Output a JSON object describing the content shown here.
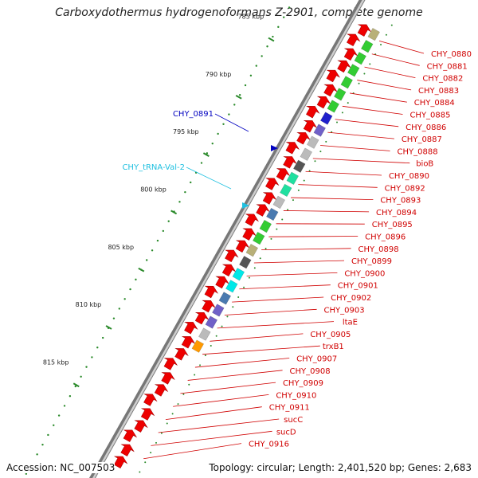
{
  "title": "Carboxydothermus hydrogenoformans Z-2901, complete genome",
  "accession": "Accession: NC_007503",
  "topology": "Topology: circular; Length: 2,401,520 bp; Genes: 2,683",
  "scale_labels": [
    "785 kbp",
    "790 kbp",
    "795 kbp",
    "800 kbp",
    "805 kbp",
    "810 kbp",
    "815 kbp"
  ],
  "genes": [
    {
      "name": "CHY_0880",
      "color": "#d00000"
    },
    {
      "name": "CHY_0881",
      "color": "#d00000"
    },
    {
      "name": "CHY_0882",
      "color": "#d00000"
    },
    {
      "name": "CHY_0883",
      "color": "#d00000"
    },
    {
      "name": "CHY_0884",
      "color": "#d00000"
    },
    {
      "name": "CHY_0885",
      "color": "#d00000"
    },
    {
      "name": "CHY_0886",
      "color": "#d00000"
    },
    {
      "name": "CHY_0887",
      "color": "#d00000"
    },
    {
      "name": "CHY_0888",
      "color": "#d00000"
    },
    {
      "name": "bioB",
      "color": "#d00000"
    },
    {
      "name": "CHY_0890",
      "color": "#d00000"
    },
    {
      "name": "CHY_0892",
      "color": "#d00000"
    },
    {
      "name": "CHY_0893",
      "color": "#d00000"
    },
    {
      "name": "CHY_0894",
      "color": "#d00000"
    },
    {
      "name": "CHY_0895",
      "color": "#d00000"
    },
    {
      "name": "CHY_0896",
      "color": "#d00000"
    },
    {
      "name": "CHY_0898",
      "color": "#d00000"
    },
    {
      "name": "CHY_0899",
      "color": "#d00000"
    },
    {
      "name": "CHY_0900",
      "color": "#d00000"
    },
    {
      "name": "CHY_0901",
      "color": "#d00000"
    },
    {
      "name": "CHY_0902",
      "color": "#d00000"
    },
    {
      "name": "CHY_0903",
      "color": "#d00000"
    },
    {
      "name": "ltaE",
      "color": "#d00000"
    },
    {
      "name": "CHY_0905",
      "color": "#d00000"
    },
    {
      "name": "trxB1",
      "color": "#d00000"
    },
    {
      "name": "CHY_0907",
      "color": "#d00000"
    },
    {
      "name": "CHY_0908",
      "color": "#d00000"
    },
    {
      "name": "CHY_0909",
      "color": "#d00000"
    },
    {
      "name": "CHY_0910",
      "color": "#d00000"
    },
    {
      "name": "CHY_0911",
      "color": "#d00000"
    },
    {
      "name": "sucC",
      "color": "#d00000"
    },
    {
      "name": "sucD",
      "color": "#d00000"
    },
    {
      "name": "CHY_0916",
      "color": "#d00000"
    }
  ],
  "left_labels": [
    {
      "name": "CHY_0891",
      "color": "#0000c0"
    },
    {
      "name": "CHY_tRNA-Val-2",
      "color": "#20c0e0"
    }
  ],
  "colors": {
    "gene_red": "#ee0000",
    "cog_green": "#33cc33",
    "cog_blue": "#2020cc",
    "cog_purple": "#7060c8",
    "cog_grey": "#bbbbbb",
    "cog_darkgrey": "#555555",
    "cog_teal": "#20e0a0",
    "cog_steel": "#4a7ab0",
    "cog_olive": "#b8b078",
    "cog_cyan": "#00e8e8",
    "cog_orange": "#ff9900",
    "backbone": "#888888",
    "tick_green": "#2a8a2a"
  }
}
